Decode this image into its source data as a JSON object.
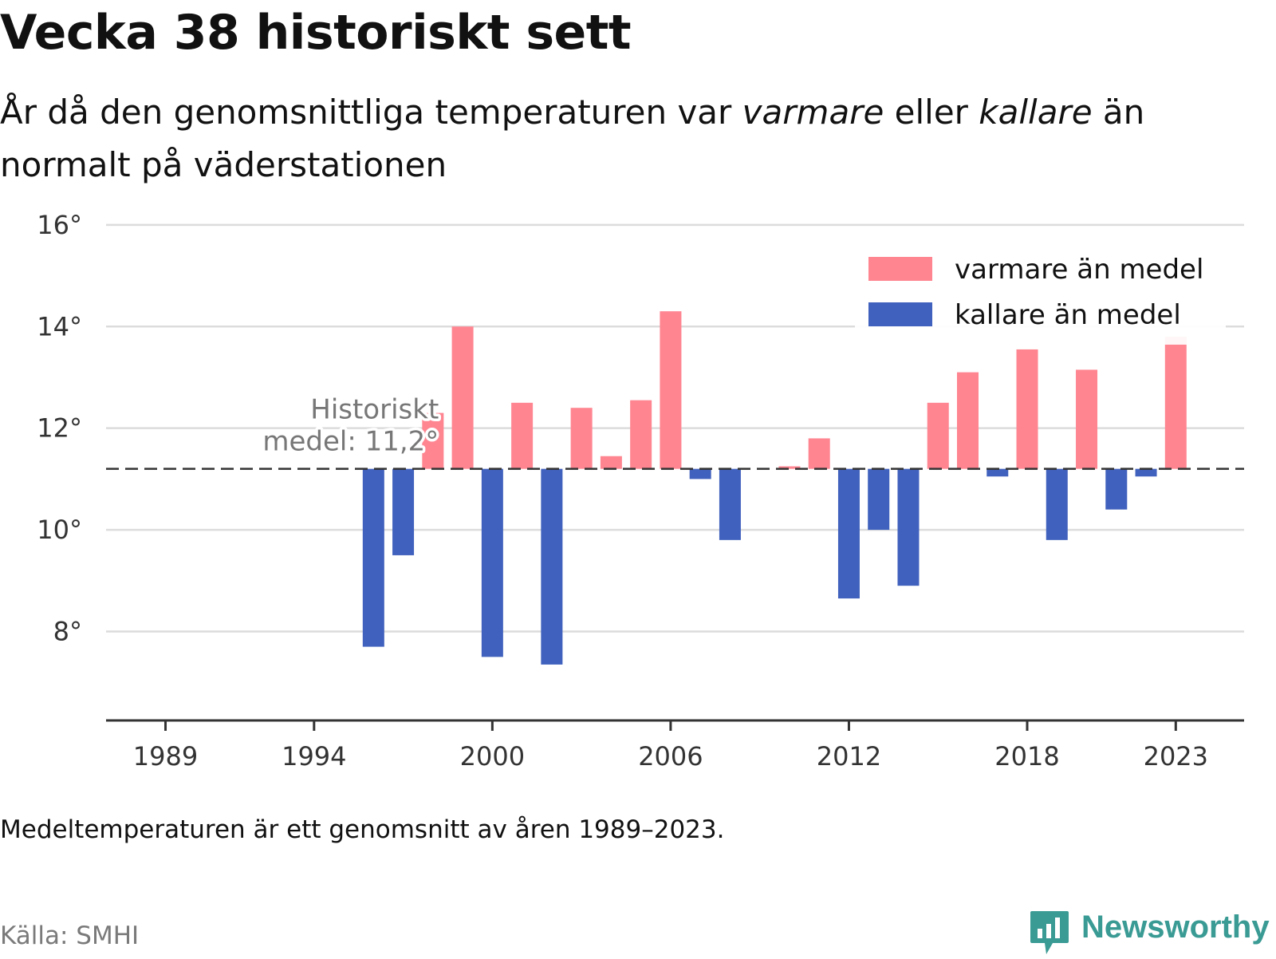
{
  "header": {
    "title": "Vecka 38 historiskt sett",
    "subtitle_part1": "År då den genomsnittliga temperaturen var ",
    "subtitle_warm": "varmare",
    "subtitle_part2": " eller ",
    "subtitle_cold": "kallare",
    "subtitle_part3": " än normalt på väderstationen"
  },
  "footer": {
    "note": "Medeltemperaturen är ett genomsnitt av åren 1989–2023.",
    "source": "Källa: SMHI",
    "brand": "Newsworthy"
  },
  "chart_data": {
    "type": "bar",
    "baseline": 11.2,
    "baseline_label_line1": "Historiskt",
    "baseline_label_line2": "medel: 11,2°",
    "x_ticks": [
      1989,
      1994,
      2000,
      2006,
      2012,
      2018,
      2023
    ],
    "x_range": [
      1987,
      2025.3
    ],
    "ylim": [
      6.25,
      16.5
    ],
    "y_ticks": [
      8,
      10,
      12,
      14,
      16
    ],
    "y_tick_labels": [
      "8°",
      "10°",
      "12°",
      "14°",
      "16°"
    ],
    "grid": true,
    "legend_position": "top-right",
    "colors": {
      "warm": "#ff8591",
      "cold": "#4061bd",
      "grid": "#dcdcdc",
      "baseline": "#333333"
    },
    "series": [
      {
        "name": "varmare än medel",
        "key": "warm"
      },
      {
        "name": "kallare än medel",
        "key": "cold"
      }
    ],
    "years": [
      1996,
      1997,
      1998,
      1999,
      2000,
      2001,
      2002,
      2003,
      2004,
      2005,
      2006,
      2007,
      2008,
      2010,
      2011,
      2012,
      2013,
      2014,
      2015,
      2016,
      2017,
      2018,
      2019,
      2020,
      2021,
      2022,
      2023
    ],
    "values": [
      7.7,
      9.5,
      12.3,
      14.0,
      7.5,
      12.5,
      7.35,
      12.4,
      11.45,
      12.55,
      14.3,
      11.0,
      9.8,
      11.25,
      11.8,
      8.65,
      10.0,
      8.9,
      12.5,
      13.1,
      11.05,
      13.55,
      9.8,
      13.15,
      10.4,
      11.05,
      13.8
    ]
  }
}
